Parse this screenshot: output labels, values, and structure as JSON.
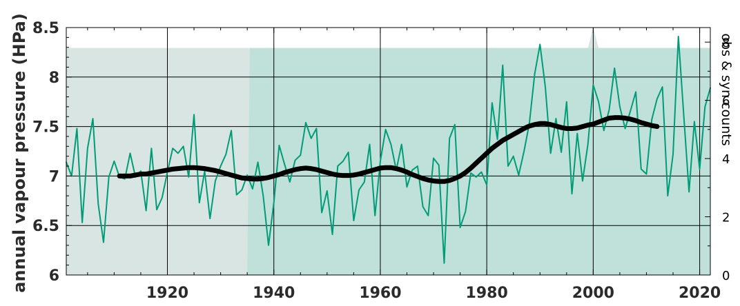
{
  "chart_data": {
    "type": "line",
    "ylabel": "annual vapour pressure (HPa)",
    "y2label": "obs & syn counts",
    "xlim": [
      1901,
      2022
    ],
    "ylim": [
      6.0,
      8.5
    ],
    "y2lim": [
      0,
      8.5
    ],
    "xticks": [
      1920,
      1940,
      1960,
      1980,
      2000,
      2020
    ],
    "yticks": [
      6.0,
      6.5,
      7.0,
      7.5,
      8.0,
      8.5
    ],
    "ytick_labels": [
      "6",
      "6.5",
      "7",
      "7.5",
      "8",
      "8.5"
    ],
    "y2ticks": [
      0,
      2,
      4,
      6,
      8
    ],
    "y2tick_labels": [
      "0",
      "2",
      "4",
      "6",
      "8"
    ],
    "grid": true,
    "colors": {
      "annual": "#009b77",
      "smooth": "#000000",
      "obs_fill": "#c0e0da",
      "syn_fill": "#d8e5e3",
      "grid": "#000000"
    },
    "series": [
      {
        "kind": "line",
        "x": [
          1901,
          1902,
          1903,
          1904,
          1905,
          1906,
          1907,
          1908,
          1909,
          1910,
          1911,
          1912,
          1913,
          1914,
          1915,
          1916,
          1917,
          1918,
          1919,
          1920,
          1921,
          1922,
          1923,
          1924,
          1925,
          1926,
          1927,
          1928,
          1929,
          1930,
          1931,
          1932,
          1933,
          1934,
          1935,
          1936,
          1937,
          1938,
          1939,
          1940,
          1941,
          1942,
          1943,
          1944,
          1945,
          1946,
          1947,
          1948,
          1949,
          1950,
          1951,
          1952,
          1953,
          1954,
          1955,
          1956,
          1957,
          1958,
          1959,
          1960,
          1961,
          1962,
          1963,
          1964,
          1965,
          1966,
          1967,
          1968,
          1969,
          1970,
          1971,
          1972,
          1973,
          1974,
          1975,
          1976,
          1977,
          1978,
          1979,
          1980,
          1981,
          1982,
          1983,
          1984,
          1985,
          1986,
          1987,
          1988,
          1989,
          1990,
          1991,
          1992,
          1993,
          1994,
          1995,
          1996,
          1997,
          1998,
          1999,
          2000,
          2001,
          2002,
          2003,
          2004,
          2005,
          2006,
          2007,
          2008,
          2009,
          2010,
          2011,
          2012,
          2013,
          2014,
          2015,
          2016,
          2017,
          2018,
          2019,
          2020,
          2021,
          2022
        ],
        "y": [
          7.14,
          7.0,
          7.48,
          6.53,
          7.28,
          7.58,
          6.72,
          6.33,
          6.99,
          7.15,
          6.99,
          6.97,
          7.23,
          6.99,
          7.05,
          6.65,
          7.28,
          6.66,
          6.78,
          7.04,
          7.28,
          7.23,
          7.3,
          6.99,
          7.62,
          6.73,
          7.05,
          6.57,
          6.95,
          7.1,
          7.22,
          7.46,
          6.81,
          6.86,
          7.01,
          6.87,
          7.14,
          6.8,
          6.3,
          6.73,
          7.31,
          7.12,
          6.94,
          7.16,
          7.21,
          7.54,
          7.38,
          7.48,
          6.63,
          6.85,
          6.41,
          7.1,
          7.15,
          7.24,
          6.55,
          6.86,
          6.94,
          7.32,
          6.6,
          7.15,
          7.47,
          7.32,
          7.06,
          7.32,
          6.89,
          7.06,
          7.1,
          6.69,
          6.6,
          7.18,
          7.11,
          6.12,
          7.38,
          7.52,
          6.48,
          6.64,
          7.03,
          6.99,
          7.04,
          6.91,
          7.74,
          7.37,
          8.12,
          7.1,
          7.2,
          7.01,
          7.25,
          7.53,
          8.03,
          8.33,
          7.9,
          7.23,
          7.58,
          7.24,
          7.75,
          6.82,
          7.43,
          6.95,
          7.32,
          7.92,
          7.75,
          7.46,
          7.67,
          8.09,
          7.7,
          7.48,
          7.66,
          7.85,
          7.07,
          7.02,
          7.57,
          7.78,
          7.9,
          6.8,
          7.22,
          8.41,
          7.62,
          6.84,
          7.55,
          7.07,
          7.7,
          7.89
        ]
      },
      {
        "kind": "smooth",
        "x": [
          1911,
          1912,
          1913,
          1914,
          1915,
          1916,
          1917,
          1918,
          1919,
          1920,
          1921,
          1922,
          1923,
          1924,
          1925,
          1926,
          1927,
          1928,
          1929,
          1930,
          1931,
          1932,
          1933,
          1934,
          1935,
          1936,
          1937,
          1938,
          1939,
          1940,
          1941,
          1942,
          1943,
          1944,
          1945,
          1946,
          1947,
          1948,
          1949,
          1950,
          1951,
          1952,
          1953,
          1954,
          1955,
          1956,
          1957,
          1958,
          1959,
          1960,
          1961,
          1962,
          1963,
          1964,
          1965,
          1966,
          1967,
          1968,
          1969,
          1970,
          1971,
          1972,
          1973,
          1974,
          1975,
          1976,
          1977,
          1978,
          1979,
          1980,
          1981,
          1982,
          1983,
          1984,
          1985,
          1986,
          1987,
          1988,
          1989,
          1990,
          1991,
          1992,
          1993,
          1994,
          1995,
          1996,
          1997,
          1998,
          1999,
          2000,
          2001,
          2002,
          2003,
          2004,
          2005,
          2006,
          2007,
          2008,
          2009,
          2010,
          2011,
          2012
        ],
        "y": [
          7.0,
          7.0,
          7.0,
          7.01,
          7.02,
          7.02,
          7.03,
          7.04,
          7.05,
          7.06,
          7.07,
          7.075,
          7.08,
          7.085,
          7.085,
          7.08,
          7.075,
          7.065,
          7.055,
          7.04,
          7.025,
          7.01,
          6.995,
          6.98,
          6.975,
          6.97,
          6.97,
          6.975,
          6.985,
          7.0,
          7.015,
          7.035,
          7.05,
          7.065,
          7.075,
          7.08,
          7.075,
          7.065,
          7.05,
          7.035,
          7.02,
          7.01,
          7.005,
          7.005,
          7.01,
          7.02,
          7.035,
          7.05,
          7.065,
          7.08,
          7.085,
          7.085,
          7.075,
          7.06,
          7.04,
          7.015,
          6.995,
          6.975,
          6.96,
          6.95,
          6.945,
          6.945,
          6.955,
          6.975,
          7.0,
          7.035,
          7.08,
          7.13,
          7.18,
          7.23,
          7.28,
          7.32,
          7.36,
          7.39,
          7.42,
          7.45,
          7.48,
          7.505,
          7.52,
          7.53,
          7.53,
          7.52,
          7.505,
          7.49,
          7.48,
          7.48,
          7.485,
          7.5,
          7.515,
          7.525,
          7.545,
          7.565,
          7.585,
          7.59,
          7.59,
          7.585,
          7.575,
          7.56,
          7.54,
          7.525,
          7.51,
          7.5
        ]
      },
      {
        "kind": "counts_syn",
        "x": [
          1901,
          1918,
          1919,
          1920,
          1935,
          1999,
          2000,
          2001,
          2022
        ],
        "y": [
          7.8,
          7.8,
          7.8,
          7.8,
          7.8,
          7.8,
          8.5,
          7.8,
          7.8
        ]
      },
      {
        "kind": "counts_obs",
        "x": [
          1935.0,
          1935.5,
          1936.0,
          2022
        ],
        "y": [
          0,
          7.8,
          7.8,
          7.8
        ]
      }
    ]
  }
}
